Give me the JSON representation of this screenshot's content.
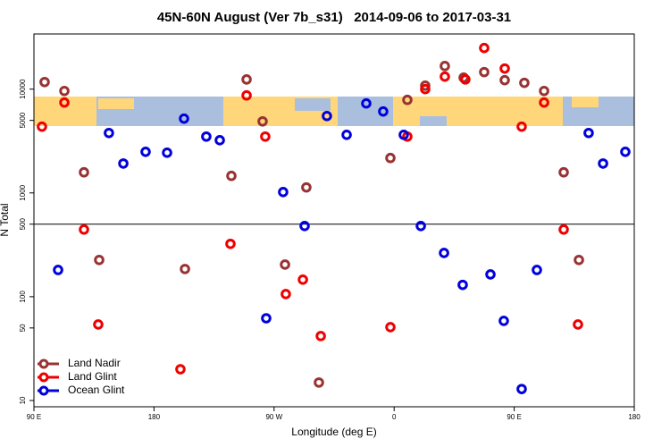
{
  "chart_data": {
    "type": "scatter",
    "log_y": true,
    "title": "45N-60N August (Ver 7b_s31)   2014-09-06 to 2017-03-31",
    "xlabel": "Longitude (deg E)",
    "ylabel": "N Total",
    "xlim": [
      90,
      540
    ],
    "ylim": [
      8.7,
      34000
    ],
    "xticks": [
      {
        "value": 90,
        "label": "90 E"
      },
      180,
      {
        "value": 270,
        "label": "90 W"
      },
      {
        "value": 360,
        "label": "0"
      },
      {
        "value": 450,
        "label": "90 E"
      },
      {
        "value": 540,
        "label": "180"
      }
    ],
    "yticks": [
      10,
      50,
      100,
      500,
      1000,
      5000,
      10000
    ],
    "hline": 500,
    "legend": "bottom-left",
    "series": [
      {
        "name": "Land Nadir",
        "color": "#993333",
        "x": [
          98,
          112.8,
          127.5,
          138.9,
          203.2,
          238,
          249.4,
          261.4,
          278.2,
          294.2,
          303.6,
          357.2,
          369.9,
          383.3,
          398,
          412.1,
          427.5,
          442.9,
          457.6,
          472.4,
          487.1,
          498.5
        ],
        "values": [
          11700,
          9600,
          1580,
          226,
          185,
          1460,
          12400,
          4890,
          204,
          1130,
          14.9,
          2170,
          7880,
          10800,
          16700,
          12900,
          14600,
          12200,
          11500,
          9600,
          1580,
          226
        ]
      },
      {
        "name": "Land Glint",
        "color": "#ee0000",
        "x": [
          96,
          112.8,
          127.5,
          138.2,
          199.8,
          237.3,
          249.4,
          263.4,
          278.8,
          291.6,
          305,
          357.2,
          369.9,
          383.3,
          398,
          413.4,
          427.5,
          442.9,
          455.6,
          472.4,
          487.1,
          497.8
        ],
        "values": [
          4350,
          7430,
          444,
          54,
          20,
          323,
          8700,
          3490,
          106,
          146,
          41.8,
          50.9,
          3490,
          10000,
          13200,
          12400,
          24900,
          15800,
          4350,
          7430,
          444,
          54
        ]
      },
      {
        "name": "Ocean Glint",
        "color": "#0000dd",
        "x": [
          108.1,
          146.2,
          157,
          173.7,
          189.8,
          202.5,
          219.2,
          229.3,
          264.1,
          276.8,
          292.9,
          309.6,
          324.4,
          339.1,
          351.8,
          367.2,
          380,
          397.4,
          411.4,
          432.2,
          442.2,
          455.6,
          467,
          505.8,
          516.6,
          533.3
        ],
        "values": [
          181,
          3780,
          1920,
          2490,
          2440,
          5200,
          3490,
          3220,
          62,
          1020,
          480,
          5510,
          3630,
          7280,
          6090,
          3630,
          480,
          264,
          130,
          164,
          58.5,
          12.9,
          181,
          3780,
          1920,
          2490
        ]
      }
    ]
  }
}
